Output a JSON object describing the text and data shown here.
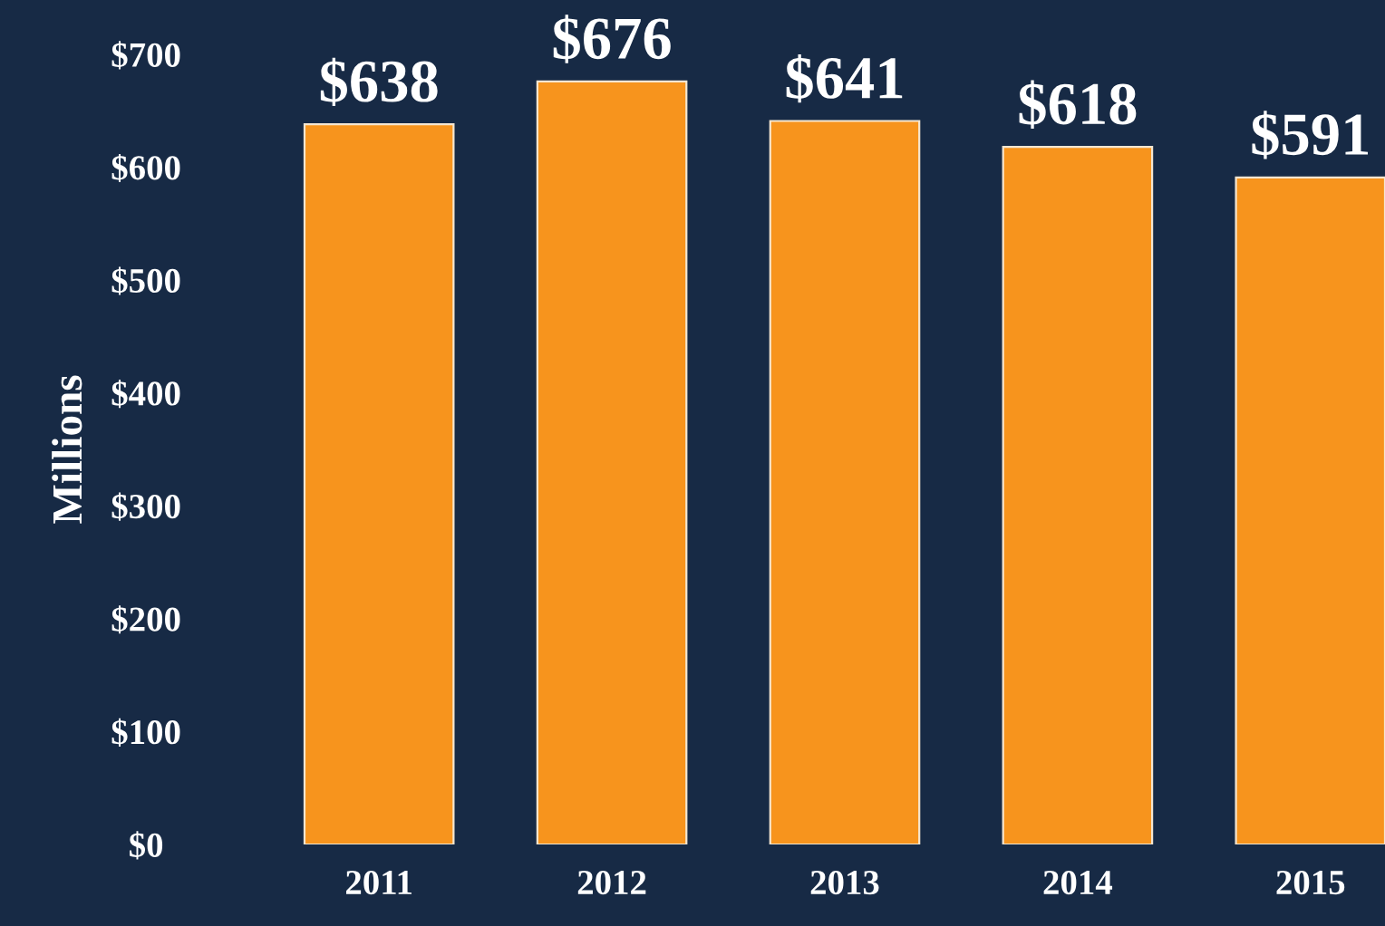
{
  "chart_data": {
    "type": "bar",
    "ylabel": "Millions",
    "categories": [
      "2011",
      "2012",
      "2013",
      "2014",
      "2015"
    ],
    "values": [
      638,
      676,
      641,
      618,
      591
    ],
    "value_labels": [
      "$638",
      "$676",
      "$641",
      "$618",
      "$591"
    ],
    "color": "#f7941d",
    "ylim": [
      0,
      700
    ],
    "yticks": [
      {
        "value": 0,
        "label": "$0"
      },
      {
        "value": 100,
        "label": "$100"
      },
      {
        "value": 200,
        "label": "$200"
      },
      {
        "value": 300,
        "label": "$300"
      },
      {
        "value": 400,
        "label": "$400"
      },
      {
        "value": 500,
        "label": "$500"
      },
      {
        "value": 600,
        "label": "$600"
      },
      {
        "value": 700,
        "label": "$700"
      }
    ],
    "grid": false,
    "legend": false
  }
}
